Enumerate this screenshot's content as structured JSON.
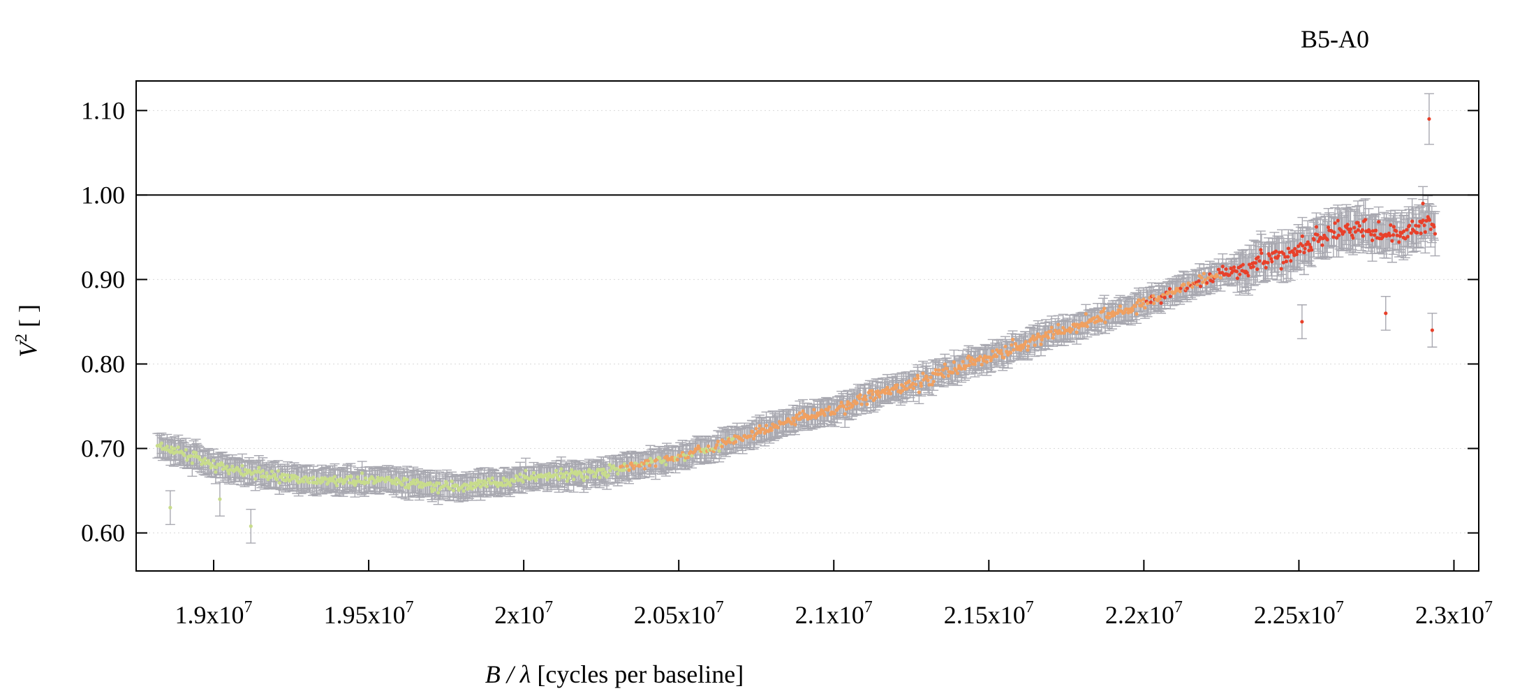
{
  "chart_data": {
    "type": "scatter",
    "title": "B5-A0",
    "xlabel_italic": "B / λ",
    "xlabel_rest": " [cycles per baseline]",
    "ylabel_main": "V",
    "ylabel_sup": "2",
    "ylabel_rest": " [ ]",
    "xlim": [
      18750000,
      23080000
    ],
    "ylim": [
      0.555,
      1.135
    ],
    "reference_line_y": 1.0,
    "grid": "horizontal dotted",
    "x_ticks": [
      {
        "value": 19000000,
        "mantissa": "1.9"
      },
      {
        "value": 19500000,
        "mantissa": "1.95"
      },
      {
        "value": 20000000,
        "mantissa": "2"
      },
      {
        "value": 20500000,
        "mantissa": "2.05"
      },
      {
        "value": 21000000,
        "mantissa": "2.1"
      },
      {
        "value": 21500000,
        "mantissa": "2.15"
      },
      {
        "value": 22000000,
        "mantissa": "2.2"
      },
      {
        "value": 22500000,
        "mantissa": "2.25"
      },
      {
        "value": 23000000,
        "mantissa": "2.3"
      }
    ],
    "x_tick_base": "x10",
    "x_tick_exp": "7",
    "y_ticks": [
      {
        "value": 0.6,
        "label": "0.60"
      },
      {
        "value": 0.7,
        "label": "0.70"
      },
      {
        "value": 0.8,
        "label": "0.80"
      },
      {
        "value": 0.9,
        "label": "0.90"
      },
      {
        "value": 1.0,
        "label": "1.00"
      },
      {
        "value": 1.1,
        "label": "1.10"
      }
    ],
    "point_colors": [
      "#c8dc8c",
      "#f0a060",
      "#e8402a"
    ],
    "errorbar_color": "#a8a8b0",
    "series": [
      {
        "x": [
          18800000,
          18900000,
          19000000,
          19100000,
          19200000,
          19300000,
          19400000,
          19500000,
          19600000,
          19700000,
          19800000,
          19900000,
          20000000,
          20100000,
          20200000,
          20300000,
          20400000,
          20500000,
          20600000,
          20700000,
          20800000,
          20900000,
          21000000,
          21100000,
          21200000,
          21300000,
          21400000,
          21500000,
          21600000,
          21700000,
          21800000,
          21900000,
          22000000,
          22100000,
          22200000,
          22300000,
          22400000,
          22500000,
          22600000,
          22700000,
          22800000,
          22900000
        ],
        "y": [
          0.705,
          0.695,
          0.68,
          0.672,
          0.668,
          0.662,
          0.662,
          0.663,
          0.66,
          0.656,
          0.655,
          0.658,
          0.665,
          0.668,
          0.67,
          0.675,
          0.683,
          0.69,
          0.7,
          0.712,
          0.725,
          0.738,
          0.745,
          0.758,
          0.77,
          0.782,
          0.795,
          0.808,
          0.822,
          0.835,
          0.848,
          0.86,
          0.872,
          0.885,
          0.9,
          0.912,
          0.925,
          0.935,
          0.955,
          0.96,
          0.95,
          0.965
        ]
      }
    ],
    "outliers": [
      {
        "x": 22920000,
        "y": 1.09
      },
      {
        "x": 22900000,
        "y": 0.99
      },
      {
        "x": 22930000,
        "y": 0.84
      },
      {
        "x": 22780000,
        "y": 0.86
      },
      {
        "x": 22510000,
        "y": 0.85
      },
      {
        "x": 19120000,
        "y": 0.608
      },
      {
        "x": 18860000,
        "y": 0.63
      },
      {
        "x": 19020000,
        "y": 0.64
      }
    ]
  }
}
